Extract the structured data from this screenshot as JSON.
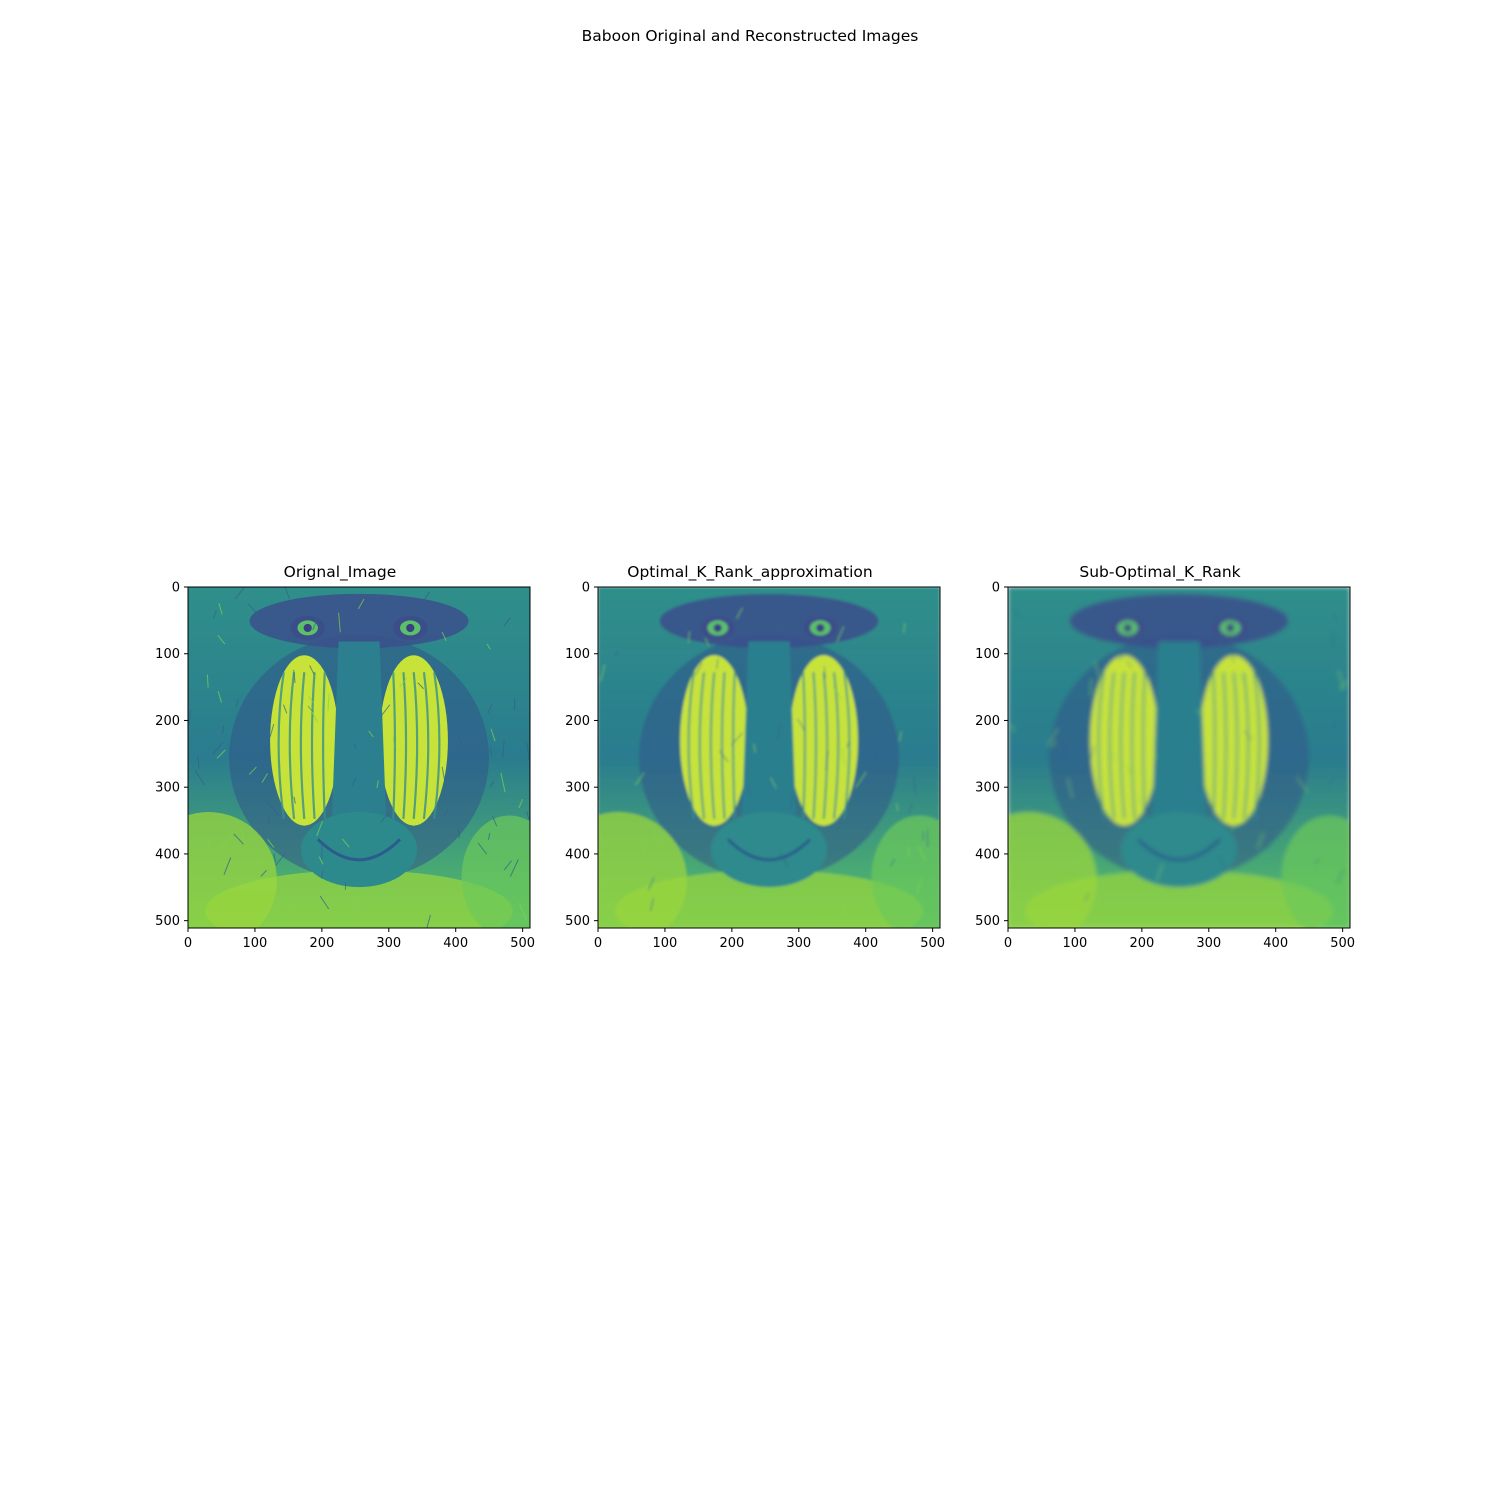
{
  "figure": {
    "title": "Baboon Original and Reconstructed Images"
  },
  "colormap": "viridis",
  "chart_data": [
    {
      "type": "heatmap",
      "title": "Orignal_Image",
      "xlim": [
        0,
        511
      ],
      "ylim": [
        511,
        0
      ],
      "xticks": [
        "0",
        "100",
        "200",
        "300",
        "400",
        "500"
      ],
      "yticks": [
        "0",
        "100",
        "200",
        "300",
        "400",
        "500"
      ],
      "xtick_values": [
        0,
        100,
        200,
        300,
        400,
        500
      ],
      "ytick_values": [
        0,
        100,
        200,
        300,
        400,
        500
      ]
    },
    {
      "type": "heatmap",
      "title": "Optimal_K_Rank_approximation",
      "xlim": [
        0,
        511
      ],
      "ylim": [
        511,
        0
      ],
      "xticks": [
        "0",
        "100",
        "200",
        "300",
        "400",
        "500"
      ],
      "yticks": [
        "0",
        "100",
        "200",
        "300",
        "400",
        "500"
      ],
      "xtick_values": [
        0,
        100,
        200,
        300,
        400,
        500
      ],
      "ytick_values": [
        0,
        100,
        200,
        300,
        400,
        500
      ]
    },
    {
      "type": "heatmap",
      "title": "Sub-Optimal_K_Rank",
      "xlim": [
        0,
        511
      ],
      "ylim": [
        511,
        0
      ],
      "xticks": [
        "0",
        "100",
        "200",
        "300",
        "400",
        "500"
      ],
      "yticks": [
        "0",
        "100",
        "200",
        "300",
        "400",
        "500"
      ],
      "xtick_values": [
        0,
        100,
        200,
        300,
        400,
        500
      ],
      "ytick_values": [
        0,
        100,
        200,
        300,
        400,
        500
      ]
    }
  ]
}
